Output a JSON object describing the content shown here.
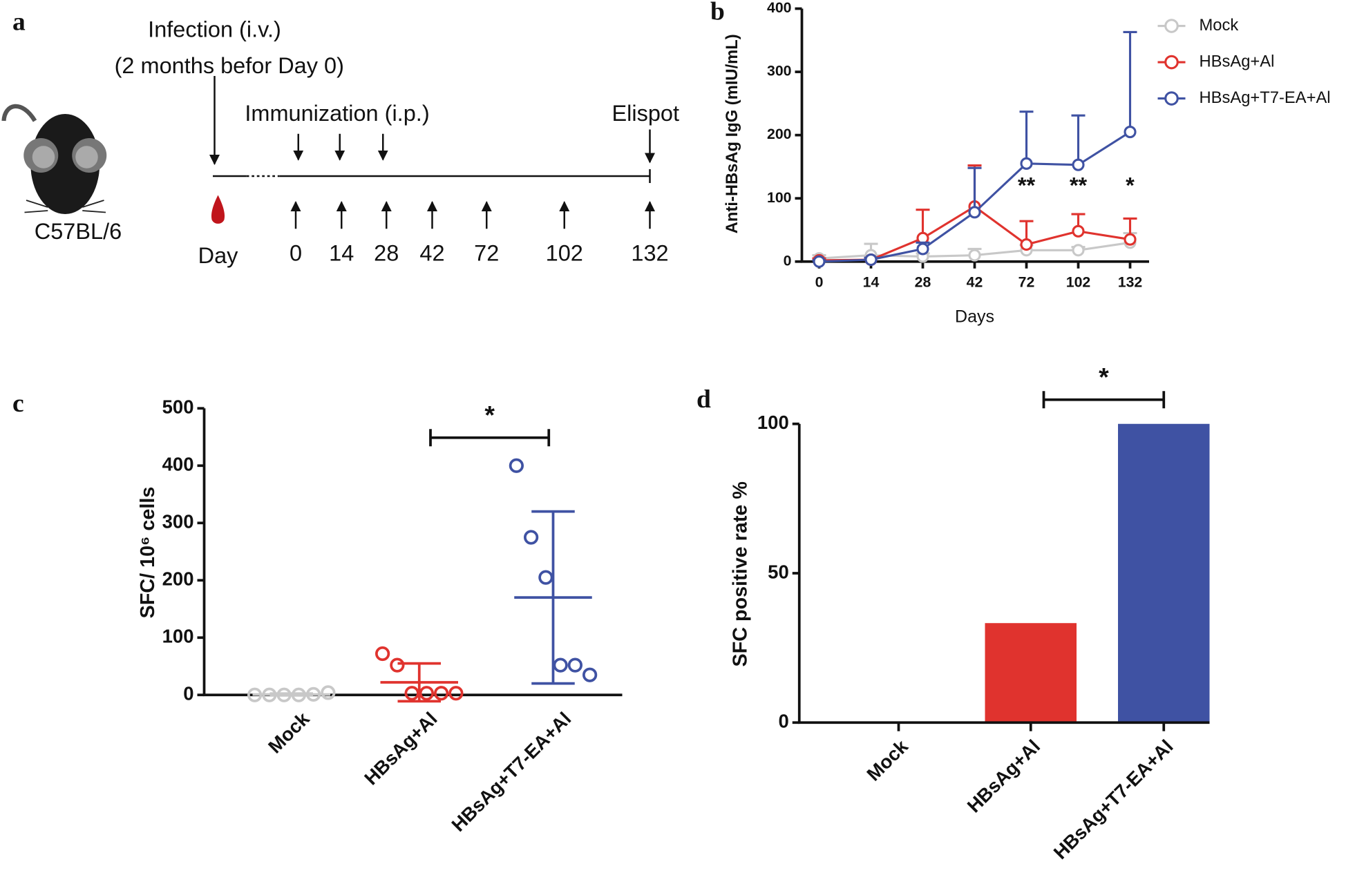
{
  "diagram": {
    "panel_label": "a",
    "strain": "C57BL/6",
    "infection": "Infection (i.v.)",
    "infection_note": "(2 months befor Day 0)",
    "immunization": "Immunization (i.p.)",
    "readout": "Elispot",
    "day_label": "Day",
    "days": [
      "0",
      "14",
      "28",
      "42",
      "72",
      "102",
      "132"
    ]
  },
  "chart_data": [
    {
      "type": "line",
      "panel_label": "b",
      "xlabel": "Days",
      "ylabel": "Anti-HBsAg  IgG (mIU/mL)",
      "categories": [
        0,
        14,
        28,
        42,
        72,
        102,
        132
      ],
      "ylim": [
        0,
        400
      ],
      "yticks": [
        0,
        100,
        200,
        300,
        400
      ],
      "series": [
        {
          "name": "Mock",
          "color": "#c8c8c8",
          "values": [
            5,
            10,
            8,
            10,
            18,
            18,
            30
          ],
          "errors": [
            5,
            18,
            5,
            10,
            8,
            5,
            15
          ]
        },
        {
          "name": "HBsAg+Al",
          "color": "#e0332e",
          "values": [
            2,
            3,
            37,
            87,
            27,
            48,
            35
          ],
          "errors": [
            3,
            3,
            45,
            65,
            37,
            27,
            33
          ]
        },
        {
          "name": "HBsAg+T7-EA+Al",
          "color": "#3f52a3",
          "values": [
            0,
            3,
            20,
            78,
            155,
            153,
            205
          ],
          "errors": [
            2,
            3,
            10,
            70,
            82,
            78,
            158
          ]
        }
      ],
      "annotations": [
        {
          "category": 72,
          "text": "**"
        },
        {
          "category": 102,
          "text": "**"
        },
        {
          "category": 132,
          "text": "*"
        }
      ]
    },
    {
      "type": "dot",
      "panel_label": "c",
      "ylabel": "SFC/ 10⁶ cells",
      "ylim": [
        0,
        500
      ],
      "yticks": [
        0,
        100,
        200,
        300,
        400,
        500
      ],
      "series": [
        {
          "name": "Mock",
          "color": "#c8c8c8",
          "values": [
            0,
            0,
            0,
            0,
            1,
            4
          ],
          "mean": 0.8,
          "sd": 1.6
        },
        {
          "name": "HBsAg+Al",
          "color": "#e0332e",
          "values": [
            72,
            52,
            3,
            3,
            3,
            3
          ],
          "mean": 22,
          "sd": 33
        },
        {
          "name": "HBsAg+T7-EA+Al",
          "color": "#3f52a3",
          "values": [
            400,
            275,
            205,
            52,
            52,
            35
          ],
          "mean": 170,
          "sd": 150
        }
      ],
      "significance": [
        {
          "between": [
            "HBsAg+Al",
            "HBsAg+T7-EA+Al"
          ],
          "label": "*"
        }
      ]
    },
    {
      "type": "bar",
      "panel_label": "d",
      "ylabel": "SFC positive rate %",
      "categories": [
        "Mock",
        "HBsAg+Al",
        "HBsAg+T7-EA+Al"
      ],
      "values": [
        0,
        33.3,
        100
      ],
      "colors": [
        "#c8c8c8",
        "#e0332e",
        "#3f52a3"
      ],
      "ylim": [
        0,
        100
      ],
      "yticks": [
        0,
        50,
        100
      ],
      "significance": [
        {
          "between": [
            "HBsAg+Al",
            "HBsAg+T7-EA+Al"
          ],
          "label": "*"
        }
      ]
    }
  ]
}
